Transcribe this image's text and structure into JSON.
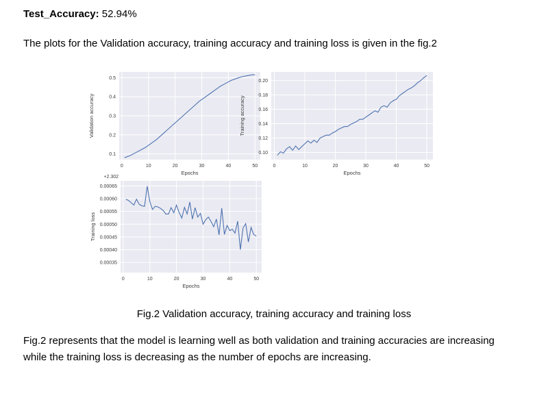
{
  "heading": {
    "label": "Test_Accuracy:",
    "value": "52.94%"
  },
  "intro": "The plots for the Validation accuracy, training accuracy and training loss is given in the fig.2",
  "caption": "Fig.2 Validation accuracy, training accuracy and training loss",
  "conclusion_line1": "Fig.2 represents that the model is learning well as both validation and training accuracies are increasing",
  "conclusion_line2": "while the training loss is decreasing as the number of epochs are increasing.",
  "colors": {
    "panel_bg": "#eaeaf2",
    "grid": "#ffffff",
    "line": "#4c72b0"
  },
  "chart_data": [
    {
      "type": "line",
      "xlabel": "Epochs",
      "ylabel": "Validation accuracy",
      "xlim": [
        -1,
        52
      ],
      "ylim": [
        0.07,
        0.53
      ],
      "xticks": [
        0,
        10,
        20,
        30,
        40,
        50
      ],
      "yticks": [
        0.1,
        0.2,
        0.3,
        0.4,
        0.5
      ],
      "ytick_labels": [
        "0.1",
        "0.2",
        "0.3",
        "0.4",
        "0.5"
      ],
      "grid": true,
      "x": [
        1,
        3,
        5,
        7,
        9,
        11,
        13,
        15,
        17,
        19,
        21,
        23,
        25,
        27,
        29,
        31,
        33,
        35,
        37,
        39,
        41,
        43,
        45,
        47,
        49,
        50
      ],
      "y": [
        0.08,
        0.09,
        0.105,
        0.12,
        0.135,
        0.155,
        0.175,
        0.2,
        0.225,
        0.25,
        0.275,
        0.3,
        0.325,
        0.35,
        0.375,
        0.395,
        0.415,
        0.435,
        0.455,
        0.47,
        0.485,
        0.495,
        0.505,
        0.51,
        0.515,
        0.515
      ]
    },
    {
      "type": "line",
      "xlabel": "Epochs",
      "ylabel": "Training accuracy",
      "xlim": [
        -1,
        52
      ],
      "ylim": [
        0.09,
        0.212
      ],
      "xticks": [
        0,
        10,
        20,
        30,
        40,
        50
      ],
      "yticks": [
        0.1,
        0.12,
        0.14,
        0.16,
        0.18,
        0.2
      ],
      "ytick_labels": [
        "0.10",
        "0.12",
        "0.14",
        "0.16",
        "0.18",
        "0.20"
      ],
      "grid": true,
      "x": [
        1,
        2,
        3,
        4,
        5,
        6,
        7,
        8,
        9,
        10,
        11,
        12,
        13,
        14,
        15,
        16,
        17,
        18,
        19,
        20,
        21,
        22,
        23,
        24,
        25,
        26,
        27,
        28,
        29,
        30,
        31,
        32,
        33,
        34,
        35,
        36,
        37,
        38,
        39,
        40,
        41,
        42,
        43,
        44,
        45,
        46,
        47,
        48,
        49,
        50
      ],
      "y": [
        0.096,
        0.101,
        0.099,
        0.105,
        0.108,
        0.103,
        0.109,
        0.104,
        0.108,
        0.112,
        0.116,
        0.113,
        0.117,
        0.114,
        0.12,
        0.122,
        0.124,
        0.124,
        0.127,
        0.129,
        0.132,
        0.134,
        0.136,
        0.136,
        0.139,
        0.141,
        0.143,
        0.146,
        0.146,
        0.149,
        0.152,
        0.155,
        0.158,
        0.156,
        0.163,
        0.165,
        0.163,
        0.169,
        0.172,
        0.174,
        0.179,
        0.182,
        0.185,
        0.188,
        0.19,
        0.193,
        0.197,
        0.2,
        0.204,
        0.207
      ]
    },
    {
      "type": "line",
      "xlabel": "Epochs",
      "ylabel": "Training loss",
      "offset_label": "+2.302",
      "xlim": [
        -1,
        52
      ],
      "ylim": [
        0.00031,
        0.00067
      ],
      "xticks": [
        0,
        10,
        20,
        30,
        40,
        50
      ],
      "yticks": [
        0.00035,
        0.0004,
        0.00045,
        0.0005,
        0.00055,
        0.0006,
        0.00065
      ],
      "ytick_labels": [
        "0.00035",
        "0.00040",
        "0.00045",
        "0.00050",
        "0.00055",
        "0.00060",
        "0.00065"
      ],
      "grid": true,
      "x": [
        1,
        2,
        3,
        4,
        5,
        6,
        7,
        8,
        9,
        10,
        11,
        12,
        13,
        14,
        15,
        16,
        17,
        18,
        19,
        20,
        21,
        22,
        23,
        24,
        25,
        26,
        27,
        28,
        29,
        30,
        31,
        32,
        33,
        34,
        35,
        36,
        37,
        38,
        39,
        40,
        41,
        42,
        43,
        44,
        45,
        46,
        47,
        48,
        49,
        50
      ],
      "y": [
        0.000598,
        0.000593,
        0.000584,
        0.000575,
        0.000598,
        0.000578,
        0.000572,
        0.00057,
        0.000649,
        0.000588,
        0.000558,
        0.00057,
        0.000568,
        0.000562,
        0.000554,
        0.00054,
        0.00054,
        0.000565,
        0.000545,
        0.000575,
        0.000546,
        0.000524,
        0.000566,
        0.00054,
        0.000587,
        0.00052,
        0.000565,
        0.000528,
        0.000542,
        0.0005,
        0.000518,
        0.000528,
        0.00051,
        0.00049,
        0.00052,
        0.000458,
        0.000563,
        0.00046,
        0.000495,
        0.000475,
        0.00048,
        0.000465,
        0.000512,
        0.0004,
        0.000485,
        0.000502,
        0.00043,
        0.000487,
        0.00046,
        0.000453
      ]
    }
  ]
}
